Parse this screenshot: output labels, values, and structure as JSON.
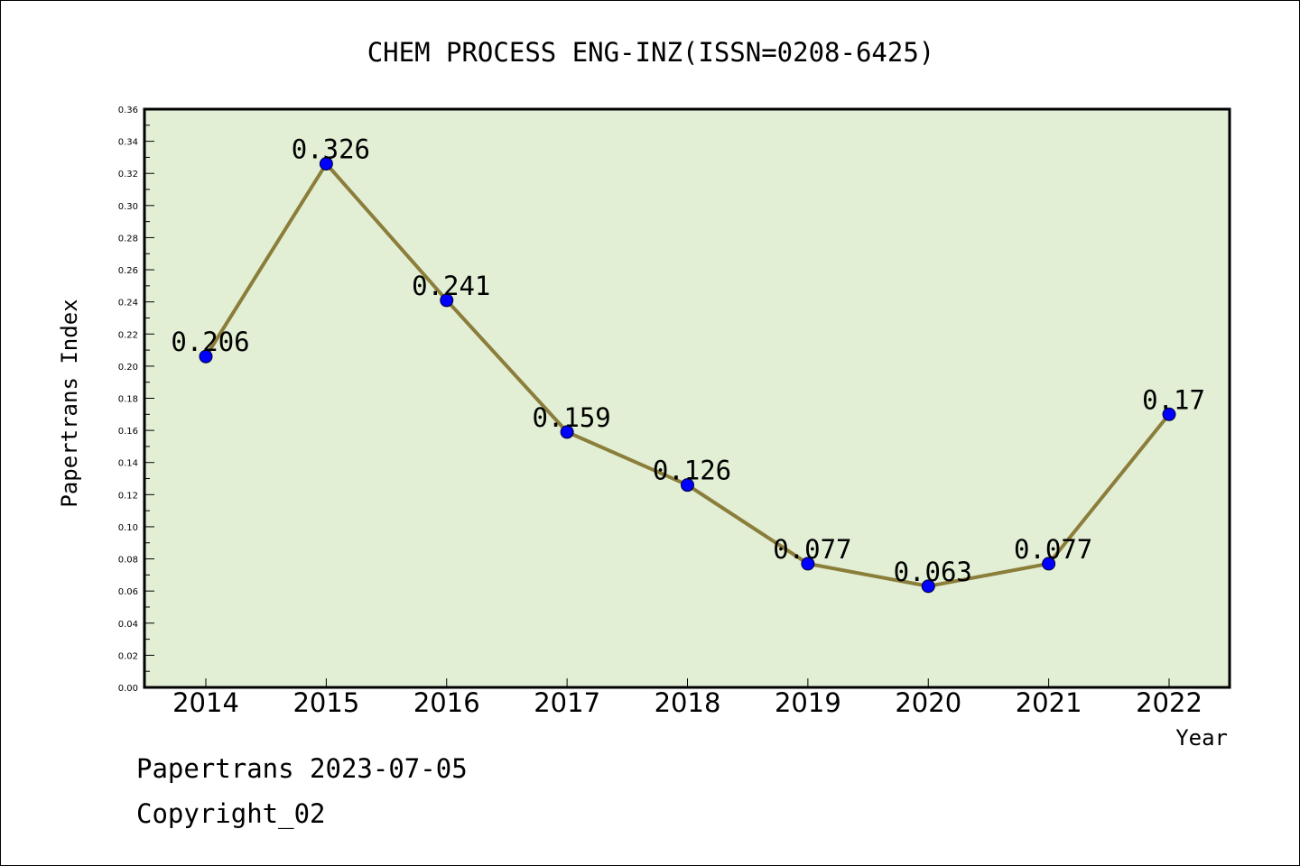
{
  "chart_data": {
    "type": "line",
    "title": "CHEM PROCESS ENG-INZ(ISSN=0208-6425)",
    "xlabel": "Year",
    "ylabel": "Papertrans Index",
    "categories": [
      "2014",
      "2015",
      "2016",
      "2017",
      "2018",
      "2019",
      "2020",
      "2021",
      "2022"
    ],
    "values": [
      0.206,
      0.326,
      0.241,
      0.159,
      0.126,
      0.077,
      0.063,
      0.077,
      0.17
    ],
    "data_labels": [
      "0.206",
      "0.326",
      "0.241",
      "0.159",
      "0.126",
      "0.077",
      "0.063",
      "0.077",
      "0.17"
    ],
    "ylim": [
      0,
      0.36
    ],
    "yticks": [
      "0.00",
      "0.02",
      "0.04",
      "0.06",
      "0.08",
      "0.10",
      "0.12",
      "0.14",
      "0.16",
      "0.18",
      "0.20",
      "0.22",
      "0.24",
      "0.26",
      "0.28",
      "0.30",
      "0.32",
      "0.34",
      "0.36"
    ],
    "grid": false,
    "colors": {
      "plot_background": "#e2efd5",
      "line": "#8b7d3a",
      "marker": "#0000ff"
    }
  },
  "footer": {
    "date_line": "Papertrans 2023-07-05",
    "copyright": "Copyright_02"
  }
}
